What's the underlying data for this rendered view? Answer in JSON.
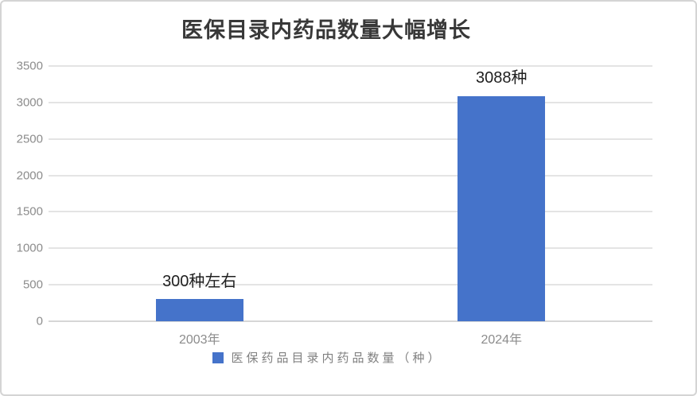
{
  "chart_data": {
    "type": "bar",
    "title": "医保目录内药品数量大幅增长",
    "categories": [
      "2003年",
      "2024年"
    ],
    "series": [
      {
        "name": "医保药品目录内药品数量（种）",
        "values": [
          300,
          3088
        ],
        "data_labels": [
          "300种左右",
          "3088种"
        ],
        "color": "#4573CA"
      }
    ],
    "ylim": [
      0,
      3500
    ],
    "ytick_step": 500,
    "yticks": [
      0,
      500,
      1000,
      1500,
      2000,
      2500,
      3000,
      3500
    ],
    "grid": true,
    "legend_position": "bottom",
    "xlabel": "",
    "ylabel": ""
  },
  "colors": {
    "bar": "#4573CA",
    "title_text": "#383838",
    "axis_text": "#8c8c8c",
    "data_label_text": "#1f1f1f",
    "gridline": "#e4e4e4",
    "axis_line": "#d6d6d6",
    "legend_text": "#808080",
    "border": "#d4d4d4",
    "background": "#ffffff"
  }
}
